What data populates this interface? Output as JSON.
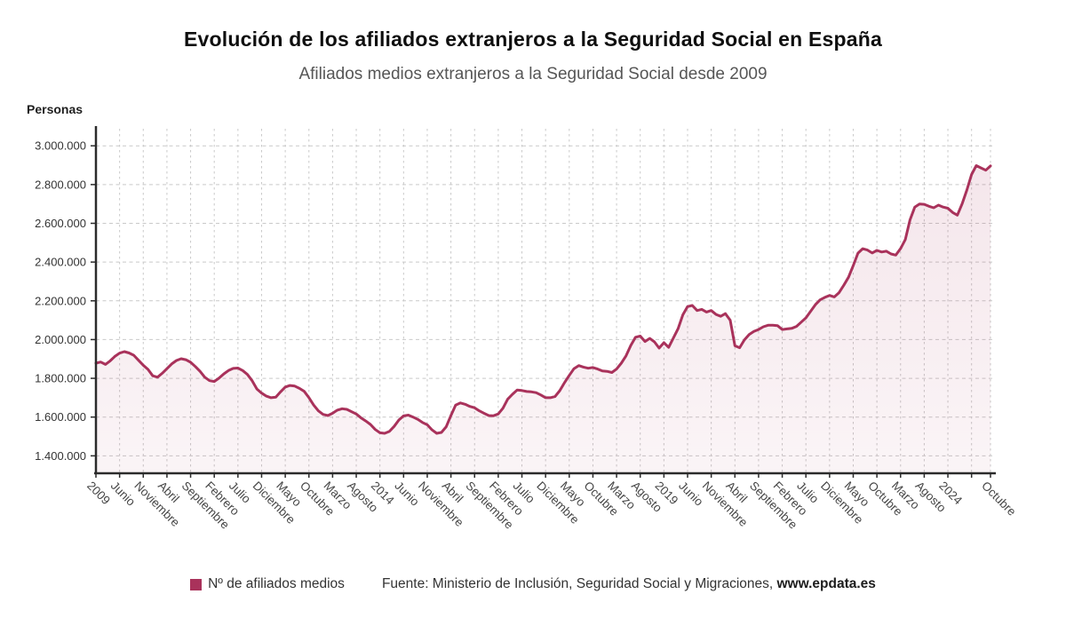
{
  "header": {
    "title": "Evolución de los afiliados extranjeros a la Seguridad Social en España",
    "subtitle": "Afiliados medios extranjeros a la Seguridad Social desde 2009"
  },
  "y_axis_title": "Personas",
  "legend": {
    "label": "Nº de afiliados medios"
  },
  "source": {
    "prefix": "Fuente: Ministerio de Inclusión, Seguridad Social y Migraciones, ",
    "link": "www.epdata.es"
  },
  "colors": {
    "line": "#a9325b",
    "area_top": "rgba(169,50,91,0.12)",
    "area_bottom": "rgba(169,50,91,0.05)",
    "grid": "#c9c9c9",
    "axis": "#2b2b2b",
    "y_label": "#333333",
    "x_label": "#474747"
  },
  "chart_data": {
    "type": "area",
    "title": "Evolución de los afiliados extranjeros a la Seguridad Social en España",
    "subtitle": "Afiliados medios extranjeros a la Seguridad Social desde 2009",
    "ylabel": "Personas",
    "x_start": "Enero 2009",
    "x_end": "Octubre 2024",
    "frequency": "monthly",
    "grid": true,
    "legend_position": "bottom",
    "ylim": [
      1310000,
      3088000
    ],
    "y_ticks": [
      "3.000.000",
      "2.800.000",
      "2.600.000",
      "2.400.000",
      "2.200.000",
      "2.000.000",
      "1.800.000",
      "1.600.000",
      "1.400.000"
    ],
    "y_tick_values": [
      3000000,
      2800000,
      2600000,
      2400000,
      2200000,
      2000000,
      1800000,
      1600000,
      1400000
    ],
    "x_tick_labels": [
      {
        "m": 0,
        "label": "2009"
      },
      {
        "m": 5,
        "label": "Junio"
      },
      {
        "m": 10,
        "label": "Noviembre"
      },
      {
        "m": 15,
        "label": "Abril"
      },
      {
        "m": 20,
        "label": "Septiembre"
      },
      {
        "m": 25,
        "label": "Febrero"
      },
      {
        "m": 30,
        "label": "Julio"
      },
      {
        "m": 35,
        "label": "Diciembre"
      },
      {
        "m": 40,
        "label": "Mayo"
      },
      {
        "m": 45,
        "label": "Octubre"
      },
      {
        "m": 50,
        "label": "Marzo"
      },
      {
        "m": 55,
        "label": "Agosto"
      },
      {
        "m": 60,
        "label": "2014"
      },
      {
        "m": 65,
        "label": "Junio"
      },
      {
        "m": 70,
        "label": "Noviembre"
      },
      {
        "m": 75,
        "label": "Abril"
      },
      {
        "m": 80,
        "label": "Septiembre"
      },
      {
        "m": 85,
        "label": "Febrero"
      },
      {
        "m": 90,
        "label": "Julio"
      },
      {
        "m": 95,
        "label": "Diciembre"
      },
      {
        "m": 100,
        "label": "Mayo"
      },
      {
        "m": 105,
        "label": "Octubre"
      },
      {
        "m": 110,
        "label": "Marzo"
      },
      {
        "m": 115,
        "label": "Agosto"
      },
      {
        "m": 120,
        "label": "2019"
      },
      {
        "m": 125,
        "label": "Junio"
      },
      {
        "m": 130,
        "label": "Noviembre"
      },
      {
        "m": 135,
        "label": "Abril"
      },
      {
        "m": 140,
        "label": "Septiembre"
      },
      {
        "m": 145,
        "label": "Febrero"
      },
      {
        "m": 150,
        "label": "Julio"
      },
      {
        "m": 155,
        "label": "Diciembre"
      },
      {
        "m": 160,
        "label": "Mayo"
      },
      {
        "m": 165,
        "label": "Octubre"
      },
      {
        "m": 170,
        "label": "Marzo"
      },
      {
        "m": 175,
        "label": "Agosto"
      },
      {
        "m": 180,
        "label": "2024"
      },
      {
        "m": 189,
        "label": "Octubre"
      }
    ],
    "series": [
      {
        "name": "Nº de afiliados medios",
        "values": [
          1878000,
          1884000,
          1872000,
          1890000,
          1913000,
          1930000,
          1938000,
          1931000,
          1919000,
          1893000,
          1867000,
          1846000,
          1813000,
          1806000,
          1826000,
          1850000,
          1874000,
          1892000,
          1901000,
          1896000,
          1883000,
          1861000,
          1836000,
          1806000,
          1788000,
          1784000,
          1801000,
          1823000,
          1840000,
          1851000,
          1853000,
          1840000,
          1820000,
          1788000,
          1745000,
          1724000,
          1708000,
          1700000,
          1703000,
          1730000,
          1755000,
          1763000,
          1760000,
          1748000,
          1733000,
          1700000,
          1662000,
          1632000,
          1614000,
          1608000,
          1620000,
          1636000,
          1643000,
          1640000,
          1628000,
          1616000,
          1596000,
          1580000,
          1562000,
          1536000,
          1519000,
          1516000,
          1526000,
          1552000,
          1585000,
          1606000,
          1610000,
          1600000,
          1588000,
          1572000,
          1560000,
          1534000,
          1516000,
          1521000,
          1550000,
          1608000,
          1662000,
          1673000,
          1666000,
          1655000,
          1648000,
          1632000,
          1620000,
          1608000,
          1607000,
          1616000,
          1646000,
          1692000,
          1718000,
          1740000,
          1737000,
          1732000,
          1730000,
          1726000,
          1714000,
          1700000,
          1700000,
          1706000,
          1736000,
          1778000,
          1815000,
          1850000,
          1866000,
          1858000,
          1852000,
          1856000,
          1848000,
          1838000,
          1836000,
          1830000,
          1848000,
          1878000,
          1916000,
          1970000,
          2012000,
          2018000,
          1990000,
          2006000,
          1988000,
          1956000,
          1984000,
          1960000,
          2008000,
          2056000,
          2128000,
          2170000,
          2176000,
          2150000,
          2156000,
          2142000,
          2150000,
          2130000,
          2120000,
          2134000,
          2100000,
          1968000,
          1958000,
          1998000,
          2026000,
          2042000,
          2052000,
          2066000,
          2074000,
          2074000,
          2072000,
          2052000,
          2055000,
          2058000,
          2068000,
          2090000,
          2112000,
          2146000,
          2180000,
          2205000,
          2218000,
          2228000,
          2220000,
          2242000,
          2280000,
          2322000,
          2382000,
          2446000,
          2469000,
          2462000,
          2447000,
          2460000,
          2452000,
          2456000,
          2442000,
          2436000,
          2470000,
          2516000,
          2618000,
          2684000,
          2700000,
          2698000,
          2688000,
          2680000,
          2694000,
          2684000,
          2678000,
          2656000,
          2642000,
          2700000,
          2772000,
          2852000,
          2898000,
          2886000,
          2874000,
          2896000
        ]
      }
    ]
  }
}
